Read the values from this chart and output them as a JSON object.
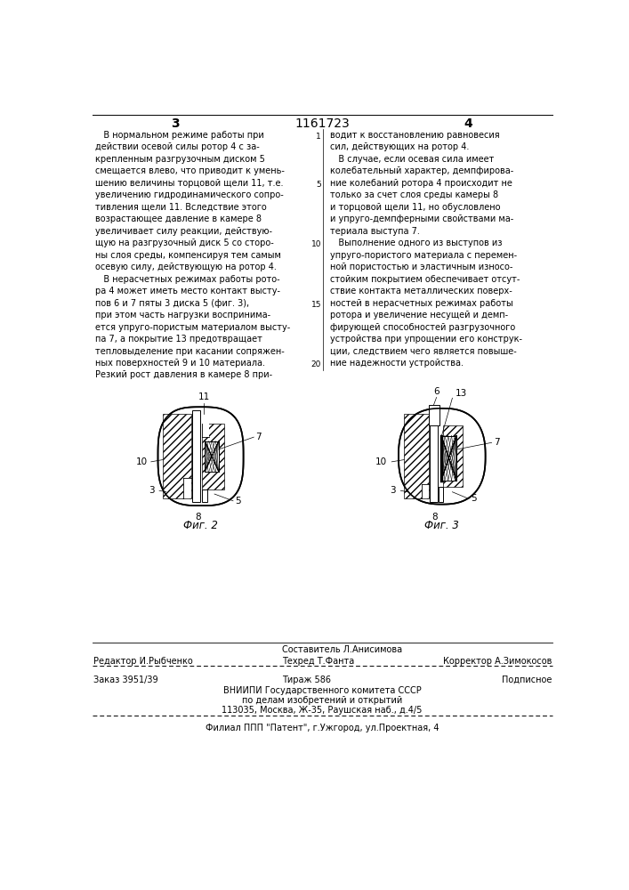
{
  "bg_color": "#ffffff",
  "page_color": "#ffffff",
  "title_page": "1161723",
  "page_left": "3",
  "page_right": "4",
  "text_left": [
    "   В нормальном режиме работы при",
    "действии осевой силы ротор 4 с за-",
    "крепленным разгрузочным диском 5",
    "смещается влево, что приводит к умень-",
    "шению величины торцовой щели 11, т.е.",
    "увеличению гидродинамического сопро-",
    "тивления щели 11. Вследствие этого",
    "возрастающее давление в камере 8",
    "увеличивает силу реакции, действую-",
    "щую на разгрузочный диск 5 со сторо-",
    "ны слоя среды, компенсируя тем самым",
    "осевую силу, действующую на ротор 4.",
    "   В нерасчетных режимах работы рото-",
    "ра 4 может иметь место контакт высту-",
    "пов 6 и 7 пяты 3 диска 5 (фиг. 3),",
    "при этом часть нагрузки воспринима-",
    "ется упруго-пористым материалом высту-",
    "па 7, а покрытие 13 предотвращает",
    "тепловыделение при касании сопряжен-",
    "ных поверхностей 9 и 10 материала.",
    "Резкий рост давления в камере 8 при-"
  ],
  "text_right": [
    "водит к восстановлению равновесия",
    "сил, действующих на ротор 4.",
    "   В случае, если осевая сила имеет",
    "колебательный характер, демпфирова-",
    "ние колебаний ротора 4 происходит не",
    "только за счет слоя среды камеры 8",
    "и торцовой щели 11, но обусловлено",
    "и упруго-демпферными свойствами ма-",
    "териала выступа 7.",
    "   Выполнение одного из выступов из",
    "упруго-пористого материала с перемен-",
    "ной пористостью и эластичным износо-",
    "стойким покрытием обеспечивает отсут-",
    "ствие контакта металлических поверх-",
    "ностей в нерасчетных режимах работы",
    "ротора и увеличение несущей и демп-",
    "фирующей способностей разгрузочного",
    "устройства при упрощении его конструк-",
    "ции, следствием чего является повыше-",
    "ние надежности устройства."
  ],
  "line_numbers_left": "1\n5\n10\n15\n20",
  "footer_sestavitel": "Составитель Л.Анисимова",
  "footer_tehred": "Техред Т.Фанта",
  "footer_redaktor": "Редактор И.Рыбченко",
  "footer_korrektor": "Корректор А.Зимокосов",
  "footer_zakaz": "Заказ 3951/39",
  "footer_tirazh": "Тираж 586",
  "footer_podpisnoe": "Подписное",
  "footer_vniipи": "ВНИИПИ Государственного комитета СССР",
  "footer_dela": "по делам изобретений и открытий",
  "footer_addr": "113035, Москва, Ж-35, Раушская наб., д.4/5",
  "footer_filial": "Филиал ППП \"Патент\", г.Ужгород, ул.Проектная, 4",
  "fig2_label": "Фиг. 2",
  "fig3_label": "Фиг. 3"
}
